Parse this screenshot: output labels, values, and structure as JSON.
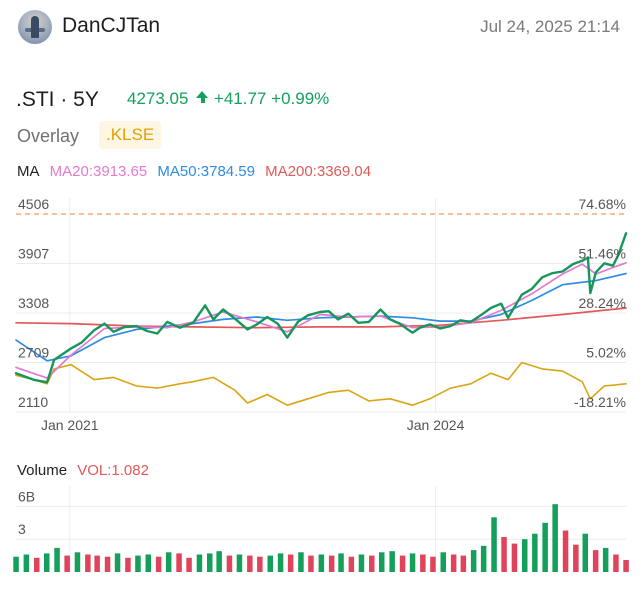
{
  "header": {
    "username": "DanCJTan",
    "timestamp": "Jul 24, 2025 21:14"
  },
  "quote": {
    "symbol_period": ".STI · 5Y",
    "price": "4273.05",
    "change": "+41.77",
    "change_pct": "+0.99%",
    "arrow": "up"
  },
  "overlay": {
    "label": "Overlay",
    "symbol": ".KLSE"
  },
  "ma": {
    "label": "MA",
    "ma20": "MA20:3913.65",
    "ma50": "MA50:3784.59",
    "ma200": "MA200:3369.04"
  },
  "volume_header": {
    "label": "Volume",
    "vol": "VOL:1.082"
  },
  "colors": {
    "price": "#16965a",
    "ma20": "#e27ad0",
    "ma50": "#2f8ce0",
    "ma200": "#e05a5a",
    "overlay": "#d9a514",
    "vol_up": "#14a05a",
    "vol_down": "#e0445a",
    "dashed_ref": "#f0a050"
  },
  "chart_data": [
    {
      "type": "line",
      "title": ".STI · 5Y",
      "x_tick_labels": [
        "Jan 2021",
        "Jan 2024"
      ],
      "x_ticks": [
        "2021-01-01",
        "2024-01-01"
      ],
      "x_range": [
        "2020-07-24",
        "2025-07-24"
      ],
      "y_left_ticks": [
        "4506",
        "3907",
        "3308",
        "2709",
        "2110"
      ],
      "ylim_left": [
        2110,
        4506
      ],
      "y_right_ticks": [
        "74.68%",
        "51.46%",
        "28.24%",
        "5.02%",
        "-18.21%"
      ],
      "ylim_right_pct": [
        -18.21,
        74.68
      ],
      "grid": true,
      "reference_line": {
        "value": 4506,
        "pct_label": "74.68%",
        "style": "dashed"
      },
      "series": [
        {
          "name": ".STI",
          "x": [
            "2020-07-24",
            "2020-09-15",
            "2020-10-25",
            "2020-11-15",
            "2021-01-05",
            "2021-02-05",
            "2021-03-15",
            "2021-04-15",
            "2021-05-12",
            "2021-06-15",
            "2021-07-20",
            "2021-08-20",
            "2021-09-20",
            "2021-10-20",
            "2021-11-26",
            "2022-01-05",
            "2022-02-10",
            "2022-03-07",
            "2022-04-05",
            "2022-05-10",
            "2022-06-17",
            "2022-07-15",
            "2022-08-15",
            "2022-09-15",
            "2022-10-14",
            "2022-11-15",
            "2022-12-15",
            "2023-01-20",
            "2023-02-15",
            "2023-03-15",
            "2023-04-15",
            "2023-05-15",
            "2023-06-15",
            "2023-07-20",
            "2023-08-18",
            "2023-09-15",
            "2023-10-24",
            "2023-11-15",
            "2023-12-15",
            "2024-01-15",
            "2024-02-15",
            "2024-03-15",
            "2024-04-15",
            "2024-05-15",
            "2024-06-15",
            "2024-07-15",
            "2024-08-05",
            "2024-09-15",
            "2024-10-15",
            "2024-11-15",
            "2024-12-15",
            "2025-01-15",
            "2025-02-15",
            "2025-03-15",
            "2025-04-01",
            "2025-04-08",
            "2025-04-25",
            "2025-05-20",
            "2025-06-15",
            "2025-07-01",
            "2025-07-24"
          ],
          "y": [
            2580,
            2500,
            2470,
            2740,
            2880,
            2950,
            3100,
            3180,
            3080,
            3140,
            3150,
            3090,
            3060,
            3200,
            3130,
            3190,
            3400,
            3230,
            3350,
            3240,
            3110,
            3170,
            3260,
            3180,
            3010,
            3200,
            3280,
            3320,
            3330,
            3230,
            3300,
            3190,
            3200,
            3350,
            3230,
            3180,
            3070,
            3130,
            3170,
            3120,
            3150,
            3220,
            3200,
            3280,
            3370,
            3420,
            3250,
            3530,
            3600,
            3740,
            3790,
            3810,
            3900,
            3940,
            3980,
            3550,
            3800,
            3910,
            3880,
            4010,
            4273
          ]
        },
        {
          "name": "MA20",
          "x": [
            "2020-07-24",
            "2020-10-25",
            "2021-01-05",
            "2021-04-15",
            "2021-07-20",
            "2021-10-20",
            "2022-01-05",
            "2022-04-05",
            "2022-07-15",
            "2022-10-14",
            "2023-01-20",
            "2023-04-15",
            "2023-07-20",
            "2023-10-24",
            "2024-01-15",
            "2024-04-15",
            "2024-07-15",
            "2024-10-15",
            "2025-01-15",
            "2025-03-15",
            "2025-04-25",
            "2025-06-15",
            "2025-07-24"
          ],
          "y": [
            2650,
            2520,
            2800,
            3120,
            3140,
            3130,
            3200,
            3320,
            3200,
            3080,
            3290,
            3260,
            3270,
            3130,
            3140,
            3190,
            3340,
            3540,
            3780,
            3900,
            3780,
            3860,
            3914
          ]
        },
        {
          "name": "MA50",
          "x": [
            "2020-07-24",
            "2020-10-25",
            "2021-01-05",
            "2021-04-15",
            "2021-07-20",
            "2021-10-20",
            "2022-01-05",
            "2022-04-05",
            "2022-07-15",
            "2022-10-14",
            "2023-01-20",
            "2023-04-15",
            "2023-07-20",
            "2023-10-24",
            "2024-01-15",
            "2024-04-15",
            "2024-07-15",
            "2024-10-15",
            "2025-01-15",
            "2025-04-25",
            "2025-07-24"
          ],
          "y": [
            2980,
            2730,
            2790,
            3010,
            3110,
            3150,
            3180,
            3230,
            3260,
            3220,
            3250,
            3260,
            3270,
            3250,
            3210,
            3210,
            3290,
            3460,
            3650,
            3700,
            3785
          ]
        },
        {
          "name": "MA200",
          "x": [
            "2020-07-24",
            "2021-01-05",
            "2021-07-20",
            "2022-01-05",
            "2022-07-15",
            "2023-01-20",
            "2023-07-20",
            "2024-01-15",
            "2024-07-15",
            "2025-01-15",
            "2025-07-24"
          ],
          "y": [
            3190,
            3180,
            3150,
            3140,
            3130,
            3140,
            3140,
            3160,
            3220,
            3290,
            3369
          ]
        },
        {
          "name": ".KLSE",
          "axis": "right_pct",
          "x": [
            "2020-07-24",
            "2020-09-15",
            "2020-10-25",
            "2020-11-15",
            "2021-01-05",
            "2021-03-15",
            "2021-05-12",
            "2021-07-20",
            "2021-09-20",
            "2021-11-26",
            "2022-01-05",
            "2022-03-07",
            "2022-05-10",
            "2022-06-17",
            "2022-08-15",
            "2022-10-14",
            "2022-12-15",
            "2023-02-15",
            "2023-04-15",
            "2023-06-15",
            "2023-08-18",
            "2023-10-24",
            "2023-12-15",
            "2024-02-15",
            "2024-04-15",
            "2024-06-15",
            "2024-08-05",
            "2024-09-15",
            "2024-11-15",
            "2025-01-15",
            "2025-03-15",
            "2025-04-08",
            "2025-05-20",
            "2025-07-24"
          ],
          "y": [
            -1,
            -3,
            -5,
            2,
            4,
            -3,
            -2,
            -6,
            -7,
            -5,
            -4,
            -2,
            -8,
            -14,
            -10,
            -15,
            -12,
            -9,
            -8,
            -13,
            -12,
            -15,
            -12,
            -7,
            -5,
            0,
            -3,
            5,
            2,
            1,
            -4,
            -12,
            -6,
            -5
          ]
        }
      ]
    },
    {
      "type": "bar",
      "title": "Volume",
      "y_ticks": [
        "6B",
        "3"
      ],
      "ylim": [
        0,
        7.5
      ],
      "last_value": 1.082,
      "series": [
        {
          "name": "Volume",
          "x": [
            "2020-07-24",
            "2020-08-24",
            "2020-09-24",
            "2020-10-24",
            "2020-11-24",
            "2020-12-24",
            "2021-01-24",
            "2021-02-24",
            "2021-03-24",
            "2021-04-24",
            "2021-05-24",
            "2021-06-24",
            "2021-07-24",
            "2021-08-24",
            "2021-09-24",
            "2021-10-24",
            "2021-11-24",
            "2021-12-24",
            "2022-01-24",
            "2022-02-24",
            "2022-03-24",
            "2022-04-24",
            "2022-05-24",
            "2022-06-24",
            "2022-07-24",
            "2022-08-24",
            "2022-09-24",
            "2022-10-24",
            "2022-11-24",
            "2022-12-24",
            "2023-01-24",
            "2023-02-24",
            "2023-03-24",
            "2023-04-24",
            "2023-05-24",
            "2023-06-24",
            "2023-07-24",
            "2023-08-24",
            "2023-09-24",
            "2023-10-24",
            "2023-11-24",
            "2023-12-24",
            "2024-01-24",
            "2024-02-24",
            "2024-03-24",
            "2024-04-24",
            "2024-05-24",
            "2024-06-24",
            "2024-07-24",
            "2024-08-24",
            "2024-09-24",
            "2024-10-24",
            "2024-11-24",
            "2024-12-24",
            "2025-01-24",
            "2025-02-24",
            "2025-03-24",
            "2025-04-24",
            "2025-05-24",
            "2025-06-24",
            "2025-07-24"
          ],
          "y": [
            1.4,
            1.6,
            1.3,
            1.7,
            2.2,
            1.5,
            1.8,
            1.6,
            1.5,
            1.4,
            1.7,
            1.3,
            1.5,
            1.6,
            1.4,
            1.8,
            1.7,
            1.3,
            1.6,
            1.7,
            1.9,
            1.5,
            1.6,
            1.5,
            1.4,
            1.5,
            1.7,
            1.6,
            1.8,
            1.5,
            1.6,
            1.5,
            1.7,
            1.4,
            1.6,
            1.5,
            1.8,
            1.9,
            1.5,
            1.7,
            1.6,
            1.4,
            1.8,
            1.6,
            1.5,
            2.0,
            2.4,
            5.0,
            3.2,
            2.6,
            3.0,
            3.5,
            4.5,
            6.2,
            3.8,
            2.5,
            3.5,
            2.0,
            2.2,
            1.6,
            1.1
          ]
        }
      ]
    }
  ]
}
